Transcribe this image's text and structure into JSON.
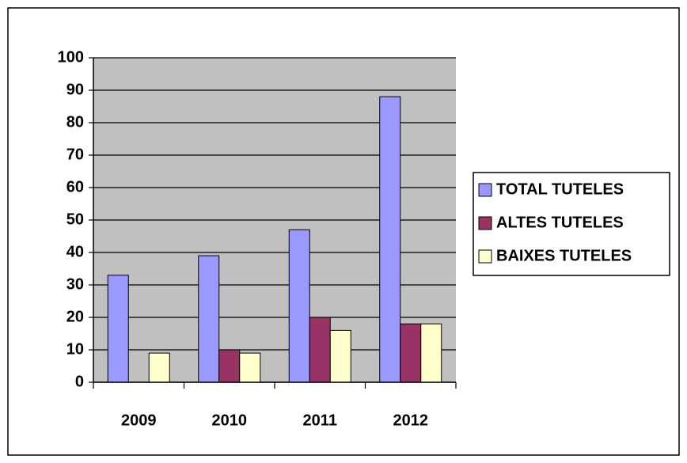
{
  "chart_data": {
    "type": "bar",
    "categories": [
      "2009",
      "2010",
      "2011",
      "2012"
    ],
    "series": [
      {
        "name": "TOTAL TUTELES",
        "color": "#9999ff",
        "values": [
          33,
          39,
          47,
          88
        ]
      },
      {
        "name": "ALTES TUTELES",
        "color": "#993366",
        "values": [
          0,
          10,
          20,
          18
        ]
      },
      {
        "name": "BAIXES TUTELES",
        "color": "#ffffcc",
        "values": [
          9,
          9,
          16,
          18
        ]
      }
    ],
    "ylim": [
      0,
      100
    ],
    "yticks": [
      0,
      10,
      20,
      30,
      40,
      50,
      60,
      70,
      80,
      90,
      100
    ],
    "grid": true,
    "legend": "right",
    "plot_background": "#c0c0c0"
  }
}
